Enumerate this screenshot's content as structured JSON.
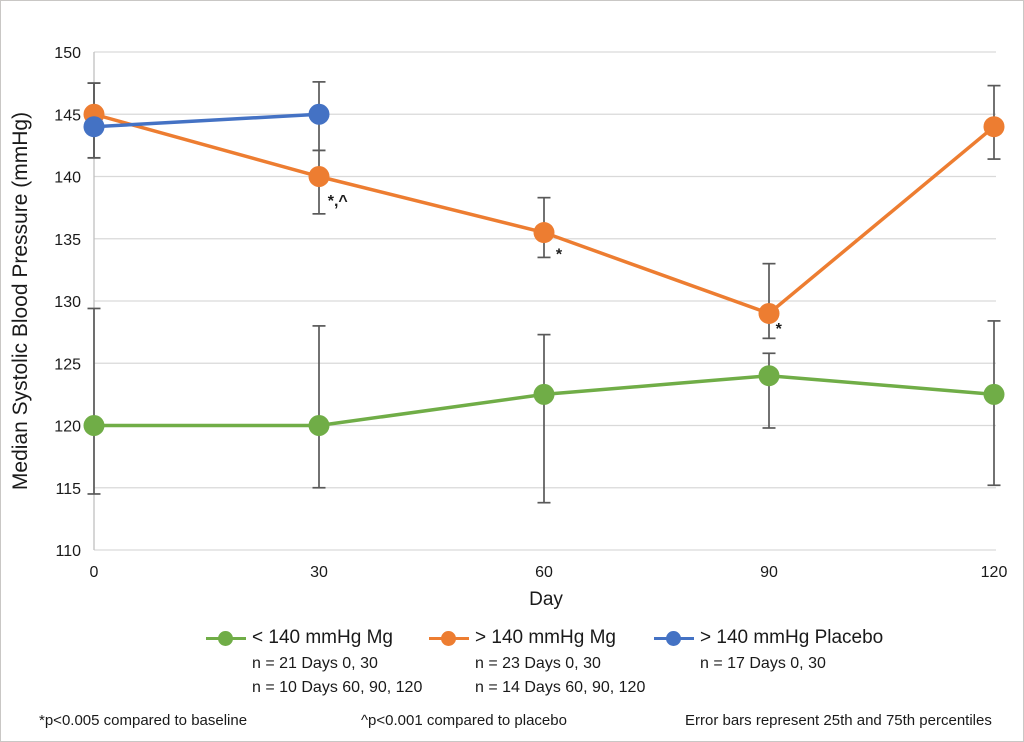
{
  "figure": {
    "background": "#ffffff",
    "border_color": "#c9c7c5"
  },
  "chart_data": {
    "type": "line",
    "title": "",
    "xlabel": "Day",
    "ylabel": "Median Systolic Blood Pressure (mmHg)",
    "xlim": [
      0,
      120
    ],
    "ylim": [
      110,
      150
    ],
    "x_ticks": [
      0,
      30,
      60,
      90,
      120
    ],
    "y_ticks": [
      110,
      115,
      120,
      125,
      130,
      135,
      140,
      145,
      150
    ],
    "grid": "horizontal-only",
    "gridline_color": "#d9d9d9",
    "axis_line_color": "#c0c0c0",
    "error_bar_color": "#595959",
    "legend_position": "bottom",
    "series": [
      {
        "name": "< 140 mmHg Mg",
        "color": "#70AD47",
        "x": [
          0,
          30,
          60,
          90,
          120
        ],
        "y": [
          120,
          120,
          122.5,
          124,
          122.5
        ],
        "error_low": [
          114.5,
          115,
          113.8,
          119.8,
          115.2
        ],
        "error_high": [
          129.4,
          128,
          127.3,
          125.8,
          128.4
        ],
        "legend_notes": [
          "n = 21 Days 0, 30",
          "n = 10 Days 60, 90, 120"
        ]
      },
      {
        "name": "> 140 mmHg Mg",
        "color": "#ED7D31",
        "x": [
          0,
          30,
          60,
          90,
          120
        ],
        "y": [
          145,
          140,
          135.5,
          129,
          144
        ],
        "error_low": [
          141.5,
          137,
          133.5,
          127,
          141.4
        ],
        "error_high": [
          147.5,
          142.1,
          138.3,
          133,
          147.3
        ],
        "legend_notes": [
          "n = 23 Days 0, 30",
          "n = 14 Days 60, 90, 120"
        ]
      },
      {
        "name": "> 140 mmHg Placebo",
        "color": "#4472C4",
        "x": [
          0,
          30
        ],
        "y": [
          144,
          145
        ],
        "error_low": [
          141.5,
          142.1
        ],
        "error_high": [
          147.5,
          147.6
        ],
        "legend_notes": [
          "n = 17 Days 0, 30"
        ]
      }
    ],
    "annotations": [
      {
        "text": "*,^",
        "x": 32.5,
        "y": 138.2
      },
      {
        "text": "*",
        "x": 62,
        "y": 133.9
      },
      {
        "text": "*",
        "x": 91.3,
        "y": 127.9
      }
    ]
  },
  "footnotes": {
    "left": "*p<0.005 compared to baseline",
    "middle": "^p<0.001 compared to placebo",
    "right": "Error bars represent 25th and 75th percentiles"
  }
}
